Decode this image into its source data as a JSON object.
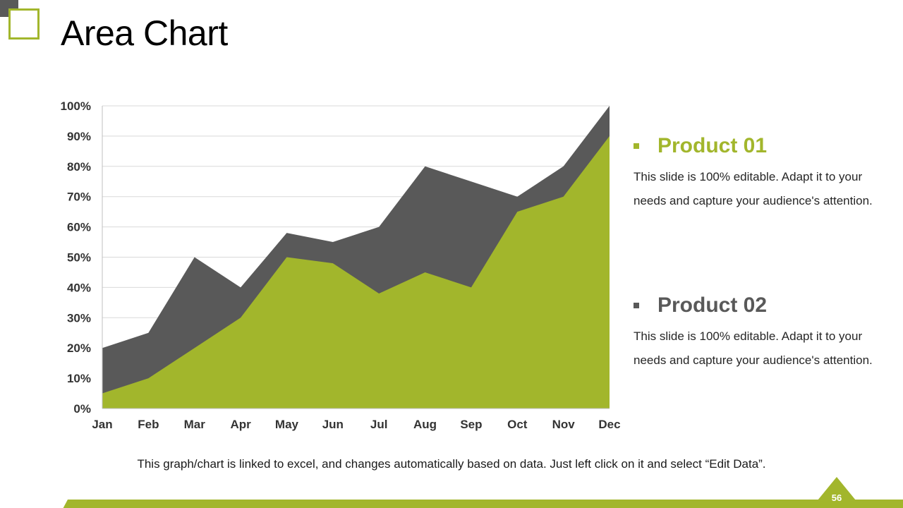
{
  "slide": {
    "title": "Area Chart",
    "page_number": "56",
    "footnote": "This graph/chart is linked to excel, and changes automatically based on data. Just left click on it and select “Edit Data”."
  },
  "colors": {
    "accent": "#a2b62c",
    "dark": "#595959"
  },
  "legend": [
    {
      "name": "Product 01",
      "color": "#a2b62c",
      "bullet_icon": "square-bullet-icon",
      "description": "This slide is 100% editable. Adapt it to your needs and capture your audience's attention."
    },
    {
      "name": "Product 02",
      "color": "#595959",
      "bullet_icon": "square-bullet-icon",
      "description": "This slide is 100% editable. Adapt it to your needs and capture your audience's attention."
    }
  ],
  "chart_data": {
    "type": "area",
    "stacked": false,
    "categories": [
      "Jan",
      "Feb",
      "Mar",
      "Apr",
      "May",
      "Jun",
      "Jul",
      "Aug",
      "Sep",
      "Oct",
      "Nov",
      "Dec"
    ],
    "series": [
      {
        "name": "Product 02",
        "color": "#595959",
        "values": [
          20,
          25,
          50,
          40,
          58,
          55,
          60,
          80,
          75,
          70,
          80,
          100
        ]
      },
      {
        "name": "Product 01",
        "color": "#a2b62c",
        "values": [
          5,
          10,
          20,
          30,
          50,
          48,
          38,
          45,
          40,
          65,
          70,
          90
        ]
      }
    ],
    "ylim": [
      0,
      100
    ],
    "yticks": [
      0,
      10,
      20,
      30,
      40,
      50,
      60,
      70,
      80,
      90,
      100
    ],
    "ytick_labels": [
      "0%",
      "10%",
      "20%",
      "30%",
      "40%",
      "50%",
      "60%",
      "70%",
      "80%",
      "90%",
      "100%"
    ],
    "grid": true,
    "title": "",
    "xlabel": "",
    "ylabel": ""
  }
}
